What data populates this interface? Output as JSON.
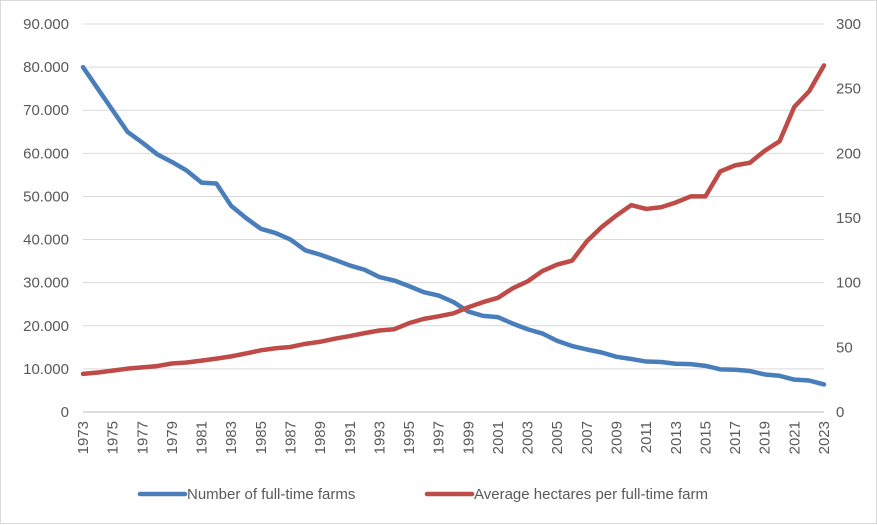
{
  "chart_data": {
    "type": "line",
    "title": "",
    "xlabel": "",
    "ylabel": "",
    "y2label": "",
    "ylim": [
      0,
      90000
    ],
    "y2lim": [
      0,
      300
    ],
    "y_ticks": [
      "0",
      "10.000",
      "20.000",
      "30.000",
      "40.000",
      "50.000",
      "60.000",
      "70.000",
      "80.000",
      "90.000"
    ],
    "y2_ticks": [
      "0",
      "50",
      "100",
      "150",
      "200",
      "250",
      "300"
    ],
    "x_tick_labels": [
      "1973",
      "1975",
      "1977",
      "1979",
      "1981",
      "1983",
      "1985",
      "1987",
      "1989",
      "1991",
      "1993",
      "1995",
      "1997",
      "1999",
      "2001",
      "2003",
      "2005",
      "2007",
      "2009",
      "2011",
      "2013",
      "2015",
      "2017",
      "2019",
      "2021",
      "2023"
    ],
    "x": [
      1973,
      1974,
      1975,
      1976,
      1977,
      1978,
      1979,
      1980,
      1981,
      1982,
      1983,
      1984,
      1985,
      1986,
      1987,
      1988,
      1989,
      1990,
      1991,
      1992,
      1993,
      1994,
      1995,
      1996,
      1997,
      1998,
      1999,
      2000,
      2001,
      2002,
      2003,
      2004,
      2005,
      2006,
      2007,
      2008,
      2009,
      2010,
      2011,
      2012,
      2013,
      2014,
      2015,
      2016,
      2017,
      2018,
      2019,
      2020,
      2021,
      2022,
      2023
    ],
    "grid": "horizontal",
    "legend_position": "bottom",
    "series": [
      {
        "name": "Number of full-time farms",
        "axis": "left",
        "color": "#4a7ebb",
        "values": [
          80000,
          75000,
          70000,
          65000,
          62500,
          59800,
          58000,
          56000,
          53200,
          53000,
          47800,
          45000,
          42500,
          41500,
          40000,
          37500,
          36500,
          35300,
          34000,
          33000,
          31300,
          30500,
          29200,
          27800,
          27000,
          25500,
          23300,
          22300,
          22000,
          20500,
          19200,
          18200,
          16500,
          15300,
          14500,
          13800,
          12800,
          12300,
          11700,
          11600,
          11200,
          11100,
          10700,
          9900,
          9800,
          9500,
          8700,
          8400,
          7500,
          7300,
          6400
        ]
      },
      {
        "name": "Average hectares per full-time farm",
        "axis": "right",
        "color": "#be4b48",
        "values": [
          29.5,
          30.5,
          32,
          33.5,
          34.5,
          35.5,
          37.5,
          38.3,
          39.7,
          41.3,
          43,
          45.3,
          47.7,
          49.3,
          50.3,
          52.7,
          54.3,
          56.7,
          58.7,
          61,
          63,
          64,
          68.7,
          72,
          74,
          76.3,
          81,
          85,
          88.3,
          95.7,
          101,
          109,
          114,
          117,
          132,
          143,
          152,
          160,
          157,
          158.3,
          162,
          166.7,
          166.7,
          186,
          190.7,
          192.7,
          202,
          209.3,
          236,
          248,
          268
        ]
      }
    ]
  }
}
